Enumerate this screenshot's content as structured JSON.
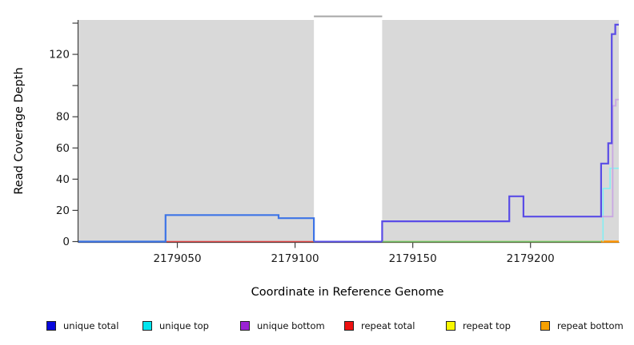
{
  "chart_data": {
    "type": "line",
    "subtype": "step-coverage-plot",
    "title": "",
    "xlabel": "Coordinate in Reference Genome",
    "ylabel": "Read Coverage Depth",
    "xlim": [
      2179008,
      2179237.5
    ],
    "ylim": [
      0,
      142
    ],
    "grid": false,
    "legend_position": "bottom",
    "x_ticks": [
      2179050,
      2179100,
      2179150,
      2179200
    ],
    "y_ticks": [
      {
        "value": 0,
        "label": "0"
      },
      {
        "value": 20,
        "label": "20"
      },
      {
        "value": 40,
        "label": "40"
      },
      {
        "value": 60,
        "label": "60"
      },
      {
        "value": 80,
        "label": "80"
      },
      {
        "value": 100,
        "label": ""
      },
      {
        "value": 120,
        "label": "120"
      },
      {
        "value": 140,
        "label": ""
      }
    ],
    "shaded_regions": [
      {
        "x0": 2179008,
        "x1": 2179108,
        "color": "#d9d9d9"
      },
      {
        "x0": 2179137,
        "x1": 2179237.5,
        "color": "#d9d9d9"
      }
    ],
    "gap_top_line": {
      "x0": 2179108,
      "x1": 2179137,
      "color": "#a6a6a6"
    },
    "series": [
      {
        "name": "unique total",
        "legend_color": "#0808dd",
        "segments": [
          {
            "color": "#3d74e6",
            "width": 2.2,
            "points": [
              [
                2179008,
                0
              ],
              [
                2179045,
                0
              ],
              [
                2179045,
                17
              ],
              [
                2179093,
                17
              ],
              [
                2179093,
                15
              ],
              [
                2179108,
                15
              ],
              [
                2179108,
                0
              ]
            ]
          },
          {
            "color": "#5a4ce6",
            "width": 2.2,
            "points": [
              [
                2179137,
                0
              ],
              [
                2179137,
                13
              ],
              [
                2179191,
                13
              ],
              [
                2179191,
                29
              ],
              [
                2179197,
                29
              ],
              [
                2179197,
                16
              ],
              [
                2179230,
                16
              ],
              [
                2179230,
                50
              ],
              [
                2179233,
                50
              ],
              [
                2179233,
                63
              ],
              [
                2179234.5,
                63
              ],
              [
                2179234.5,
                133
              ],
              [
                2179236,
                133
              ],
              [
                2179236,
                139
              ],
              [
                2179237.5,
                139
              ]
            ]
          }
        ]
      },
      {
        "name": "unique top",
        "legend_color": "#00e5ee",
        "segments": [
          {
            "color": "#85eef2",
            "width": 1.6,
            "points": [
              [
                2179230.8,
                0
              ],
              [
                2179230.8,
                34
              ],
              [
                2179233.8,
                34
              ],
              [
                2179233.8,
                47
              ],
              [
                2179237.5,
                47
              ]
            ]
          }
        ]
      },
      {
        "name": "unique bottom",
        "legend_color": "#9a22d4",
        "segments": [
          {
            "color": "#c9a8e2",
            "width": 1.8,
            "points": [
              [
                2179230,
                16
              ],
              [
                2179234.9,
                16
              ],
              [
                2179234.9,
                87
              ],
              [
                2179236.2,
                87
              ],
              [
                2179236.2,
                91
              ],
              [
                2179237.5,
                91
              ]
            ]
          }
        ]
      },
      {
        "name": "repeat total",
        "legend_color": "#ee1111",
        "segments": [
          {
            "color": "#e04848",
            "width": 1.5,
            "points": [
              [
                2179045,
                0
              ],
              [
                2179108,
                0
              ]
            ]
          }
        ]
      },
      {
        "name": "repeat top",
        "legend_color": "#f8f800",
        "segments": [
          {
            "color": "#f8f800",
            "width": 1.5,
            "points": [
              [
                2179137,
                0
              ],
              [
                2179230,
                0
              ]
            ]
          }
        ]
      },
      {
        "name": "repeat bottom",
        "legend_color": "#f5a000",
        "segments": [
          {
            "color": "#ff9500",
            "width": 2.5,
            "points": [
              [
                2179230,
                0
              ],
              [
                2179237.5,
                0
              ]
            ]
          }
        ]
      }
    ],
    "baseline_overlays": [
      {
        "color": "#5b52e8",
        "width": 2,
        "points": [
          [
            2179008,
            0
          ],
          [
            2179045,
            0
          ]
        ]
      },
      {
        "color": "#5b52e8",
        "width": 2,
        "points": [
          [
            2179108,
            0
          ],
          [
            2179137,
            0
          ]
        ]
      },
      {
        "color": "#6fbf6f",
        "width": 1.6,
        "points": [
          [
            2179137,
            0
          ],
          [
            2179230,
            0
          ]
        ]
      }
    ]
  }
}
